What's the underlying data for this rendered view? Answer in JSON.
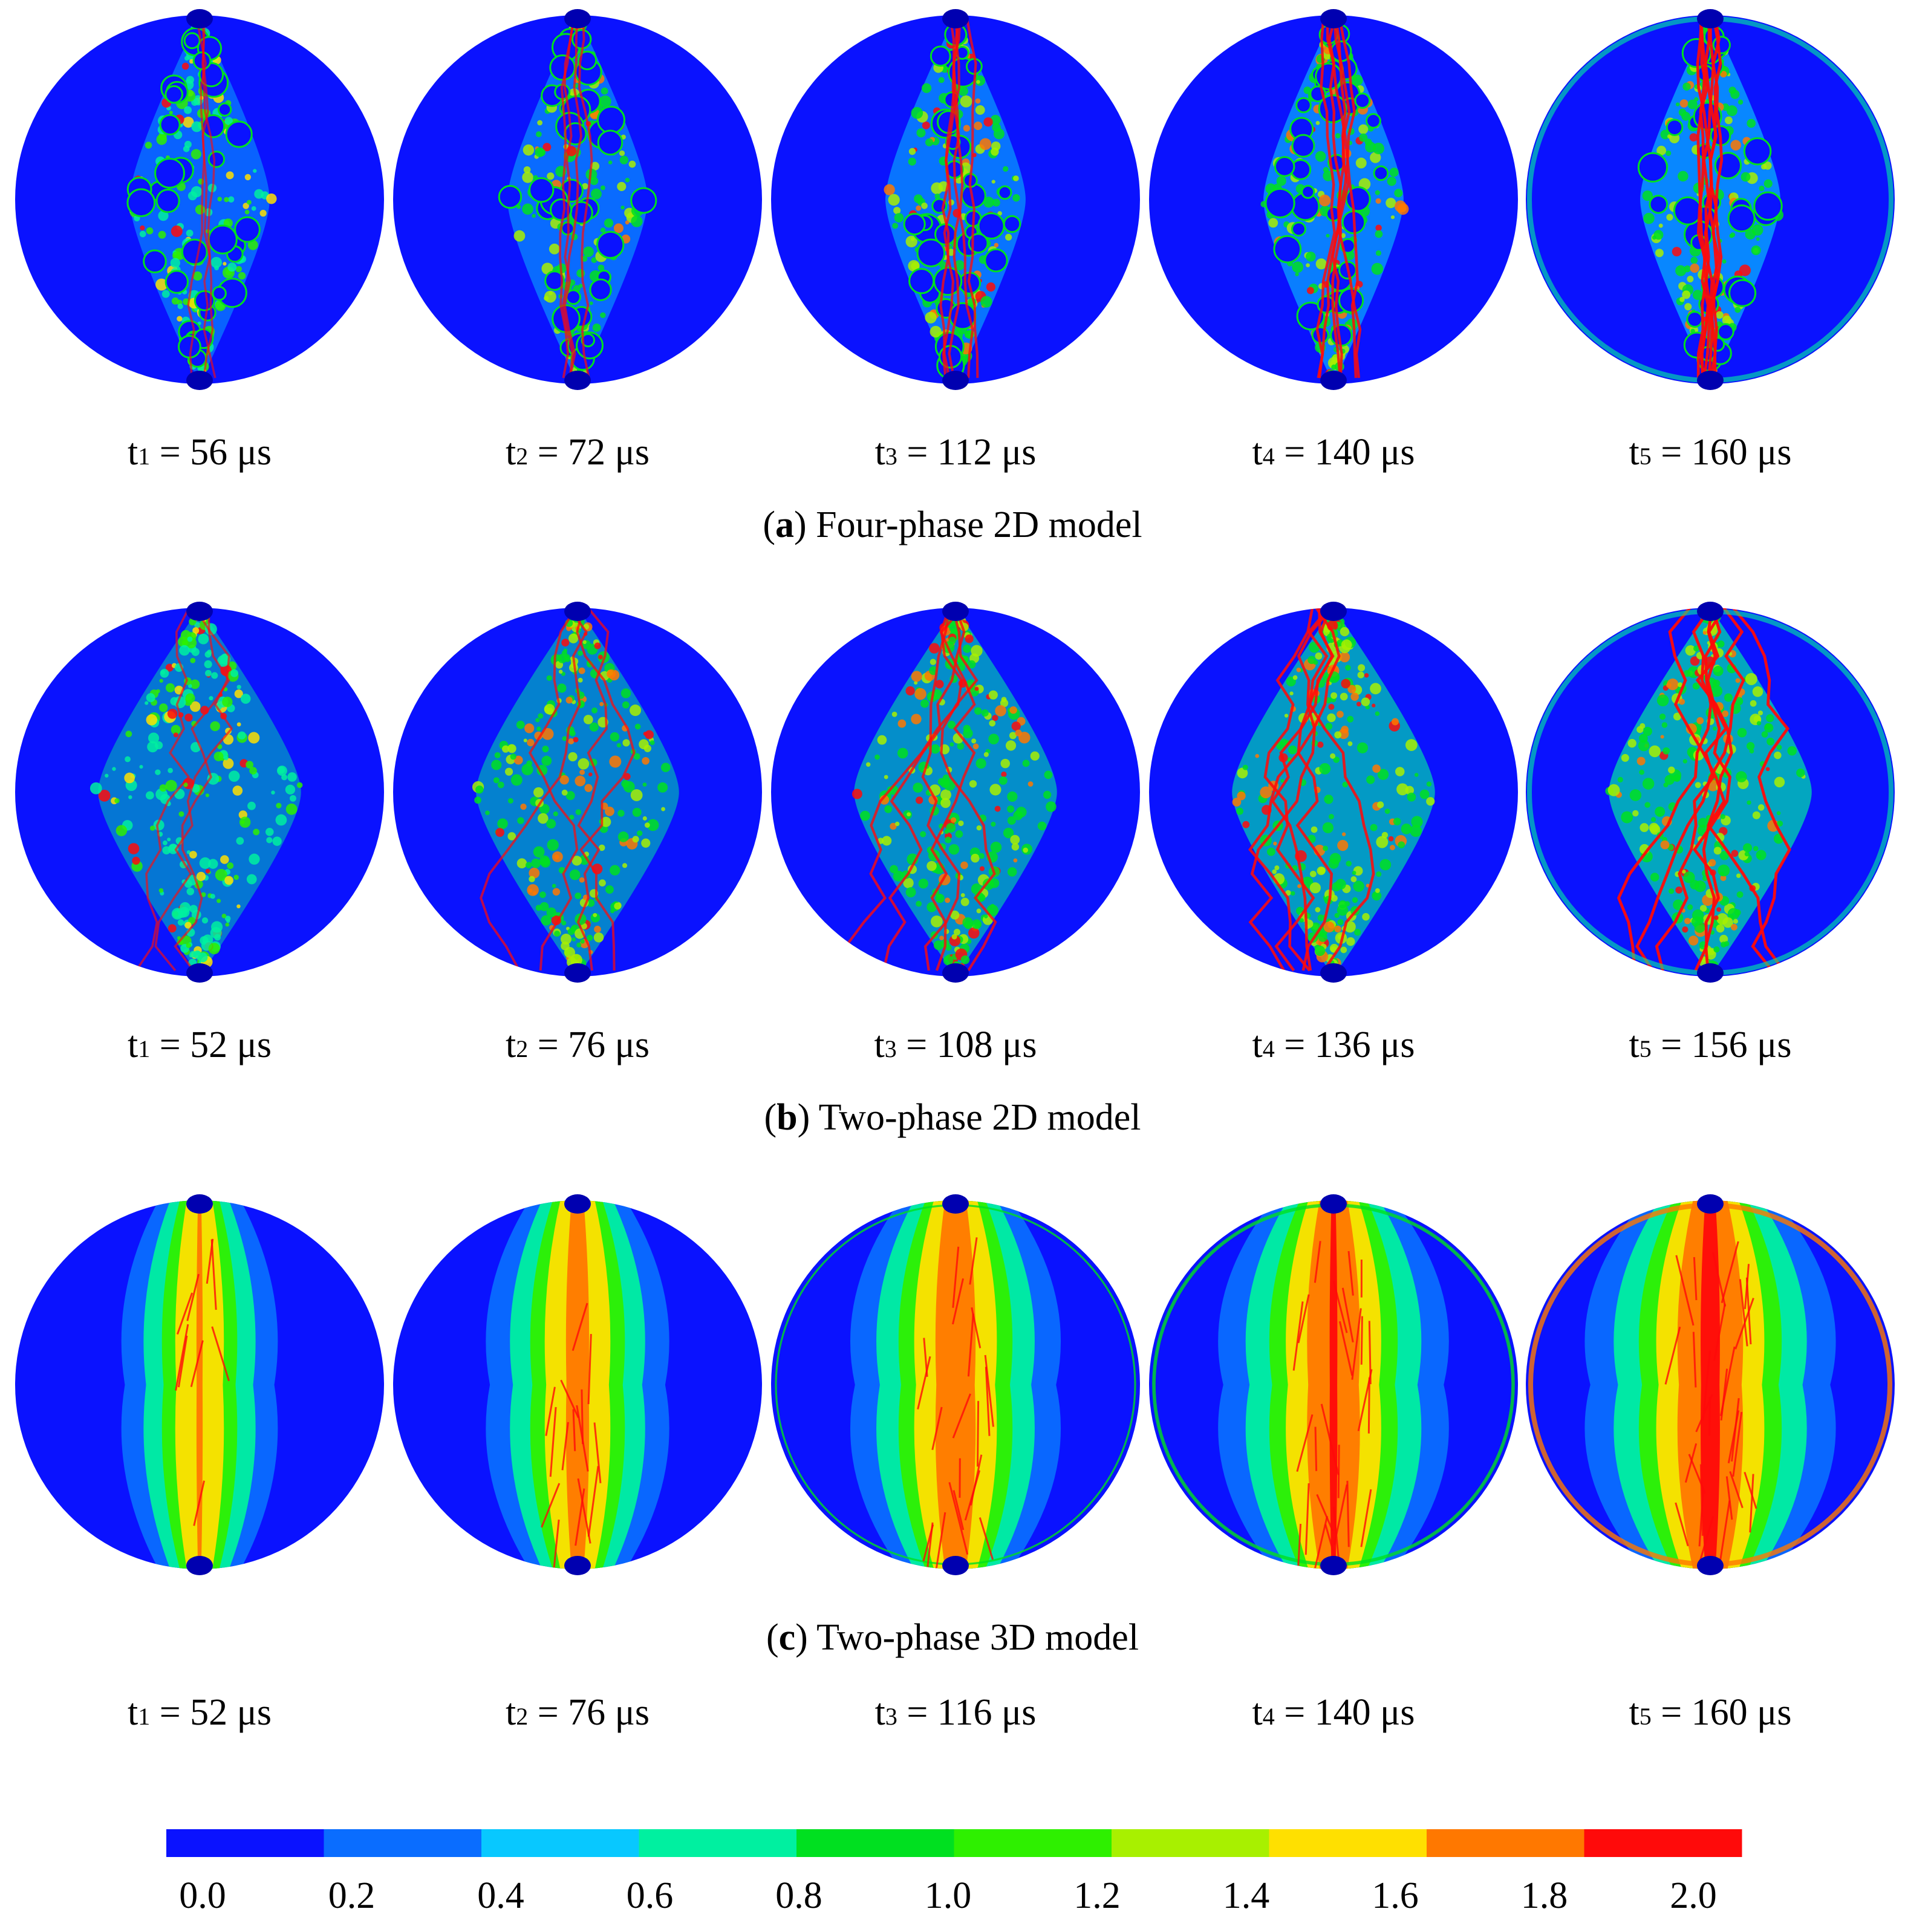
{
  "panels": [
    {
      "id": "a",
      "caption_letter": "a",
      "caption_text": "Four-phase 2D model",
      "pattern": "mesoscale-aggregates",
      "frames": [
        {
          "sym": "t",
          "sub": "1",
          "value": "56",
          "unit": "μs",
          "intensity": 0.25
        },
        {
          "sym": "t",
          "sub": "2",
          "value": "72",
          "unit": "μs",
          "intensity": 0.4
        },
        {
          "sym": "t",
          "sub": "3",
          "value": "112",
          "unit": "μs",
          "intensity": 0.55
        },
        {
          "sym": "t",
          "sub": "4",
          "value": "140",
          "unit": "μs",
          "intensity": 0.7
        },
        {
          "sym": "t",
          "sub": "5",
          "value": "160",
          "unit": "μs",
          "intensity": 0.85
        }
      ]
    },
    {
      "id": "b",
      "caption_letter": "b",
      "caption_text": "Two-phase 2D model",
      "pattern": "diamond-band",
      "frames": [
        {
          "sym": "t",
          "sub": "1",
          "value": "52",
          "unit": "μs",
          "intensity": 0.3
        },
        {
          "sym": "t",
          "sub": "2",
          "value": "76",
          "unit": "μs",
          "intensity": 0.45
        },
        {
          "sym": "t",
          "sub": "3",
          "value": "108",
          "unit": "μs",
          "intensity": 0.6
        },
        {
          "sym": "t",
          "sub": "4",
          "value": "136",
          "unit": "μs",
          "intensity": 0.75
        },
        {
          "sym": "t",
          "sub": "5",
          "value": "156",
          "unit": "μs",
          "intensity": 0.9
        }
      ]
    },
    {
      "id": "c",
      "caption_letter": "c",
      "caption_text": "Two-phase 3D model",
      "pattern": "vertical-band",
      "frames": [
        {
          "sym": "t",
          "sub": "1",
          "value": "52",
          "unit": "μs",
          "intensity": 0.3
        },
        {
          "sym": "t",
          "sub": "2",
          "value": "76",
          "unit": "μs",
          "intensity": 0.5
        },
        {
          "sym": "t",
          "sub": "3",
          "value": "116",
          "unit": "μs",
          "intensity": 0.7
        },
        {
          "sym": "t",
          "sub": "4",
          "value": "140",
          "unit": "μs",
          "intensity": 0.85
        },
        {
          "sym": "t",
          "sub": "5",
          "value": "160",
          "unit": "μs",
          "intensity": 1.0
        }
      ]
    }
  ],
  "colorbar": {
    "colors": [
      "#0a12ff",
      "#0a6dff",
      "#08c8ff",
      "#00f0a0",
      "#00e020",
      "#2ef000",
      "#a8f000",
      "#ffe000",
      "#ff7800",
      "#ff0a0a"
    ],
    "tick_labels": [
      "0.0",
      "0.2",
      "0.4",
      "0.6",
      "0.8",
      "1.0",
      "1.2",
      "1.4",
      "1.6",
      "1.8",
      "2.0"
    ]
  },
  "colors": {
    "background": "#ffffff",
    "disk": "#0a12ff"
  }
}
